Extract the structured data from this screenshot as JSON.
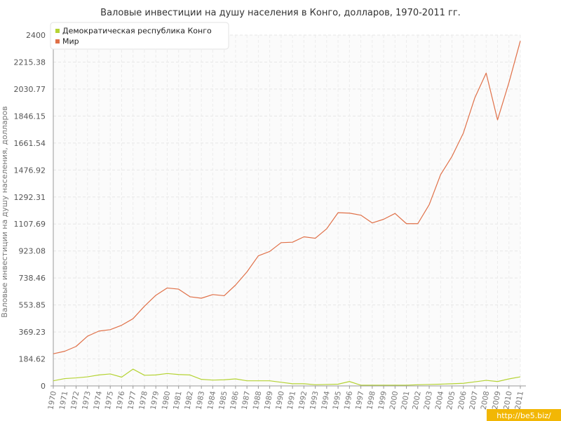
{
  "chart_data": {
    "type": "line",
    "title": "Валовые инвестиции на душу населения в Конго, долларов, 1970-2011 гг.",
    "ylabel": "Валовые инвестиции на душу населения, долларов",
    "xlabel": "",
    "ylim": [
      0,
      2400
    ],
    "y_ticks": [
      "0",
      "184.62",
      "369.23",
      "553.85",
      "738.46",
      "923.08",
      "1107.69",
      "1292.31",
      "1476.92",
      "1661.54",
      "1846.15",
      "2030.77",
      "2215.38",
      "2400"
    ],
    "x": [
      "1970",
      "1971",
      "1972",
      "1973",
      "1974",
      "1975",
      "1976",
      "1977",
      "1978",
      "1979",
      "1980",
      "1981",
      "1982",
      "1983",
      "1984",
      "1985",
      "1986",
      "1987",
      "1988",
      "1989",
      "1990",
      "1991",
      "1992",
      "1993",
      "1994",
      "1995",
      "1996",
      "1997",
      "1998",
      "1999",
      "2000",
      "2001",
      "2002",
      "2003",
      "2004",
      "2005",
      "2006",
      "2007",
      "2008",
      "2009",
      "2010",
      "2011"
    ],
    "grid": true,
    "legend_position": "top-left",
    "series": [
      {
        "name": "Демократическая республика Конго",
        "color": "#b5d334",
        "values": [
          35,
          50,
          55,
          62,
          75,
          82,
          60,
          115,
          73,
          75,
          85,
          78,
          75,
          45,
          40,
          42,
          48,
          35,
          35,
          35,
          25,
          15,
          15,
          8,
          10,
          12,
          30,
          5,
          5,
          5,
          5,
          5,
          8,
          10,
          12,
          15,
          18,
          28,
          38,
          30,
          48,
          62
        ]
      },
      {
        "name": "Мир",
        "color": "#e07048",
        "values": [
          220,
          237,
          270,
          340,
          375,
          385,
          415,
          460,
          545,
          620,
          670,
          662,
          610,
          600,
          625,
          617,
          690,
          780,
          890,
          920,
          980,
          983,
          1020,
          1010,
          1075,
          1185,
          1182,
          1168,
          1115,
          1140,
          1180,
          1110,
          1110,
          1240,
          1445,
          1570,
          1730,
          1970,
          2140,
          1820,
          2075,
          2360
        ]
      }
    ]
  },
  "watermark": "http://be5.biz/"
}
